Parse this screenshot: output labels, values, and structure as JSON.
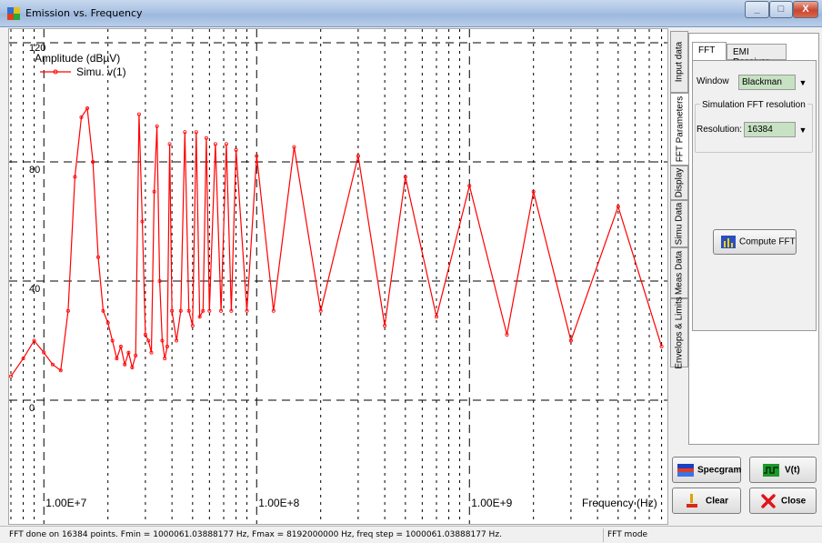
{
  "window": {
    "title": "Emission vs. Frequency",
    "min_glyph": "_",
    "max_glyph": "□",
    "close_glyph": "X"
  },
  "side_tabs": [
    "Input data",
    "FFT Parameters",
    "Display",
    "Simu Data",
    "Meas Data",
    "Envelops & Limits"
  ],
  "active_side_tab": "FFT Parameters",
  "panel": {
    "tabs": [
      "FFT",
      "EMI Receiver"
    ],
    "active_tab": "FFT",
    "window_label": "Window",
    "window_value": "Blackman",
    "group_title": "Simulation FFT resolution",
    "resolution_label": "Resolution:",
    "resolution_value": "16384",
    "compute_label": "Compute FFT"
  },
  "buttons": {
    "specgram": "Specgram",
    "vt": "V(t)",
    "clear": "Clear",
    "close": "Close"
  },
  "status": {
    "message": "FFT done on 16384 points. Fmin = 1000061.03888177 Hz, Fmax = 8192000000 Hz, freq step = 1000061.03888177 Hz.",
    "mode": "FFT mode"
  },
  "colors": {
    "series": "#ff0000",
    "combo_bg": "#c7e2c3"
  },
  "chart_data": {
    "type": "line",
    "ylabel": "Amplitude (dBµV)",
    "xlabel": "Frequency (Hz)",
    "x_scale": "log",
    "x_ticks": [
      "1.00E+7",
      "1.00E+8",
      "1.00E+9"
    ],
    "y_ticks": [
      "0",
      "40",
      "80",
      "120"
    ],
    "ylim": [
      -40,
      120
    ],
    "xlim": [
      7000000,
      8192000000
    ],
    "grid": true,
    "legend_position": "top-left",
    "series": [
      {
        "name": "Simu. v(1)",
        "x": [
          7000000,
          8000000,
          9000000,
          10000000,
          11000000,
          12000000,
          13000000,
          14000000,
          15000000,
          16000000,
          17000000,
          18000000,
          19000000,
          20000000,
          21000000,
          22000000,
          23000000,
          24000000,
          25000000,
          26000000,
          27000000,
          28000000,
          29000000,
          30000000,
          31000000,
          32000000,
          33000000,
          34000000,
          35000000,
          36000000,
          37000000,
          38000000,
          39000000,
          40000000,
          42000000,
          44000000,
          46000000,
          48000000,
          50000000,
          52000000,
          54000000,
          56000000,
          58000000,
          60000000,
          64000000,
          68000000,
          72000000,
          76000000,
          80000000,
          90000000,
          100000000,
          120000000,
          150000000,
          200000000,
          300000000,
          400000000,
          500000000,
          700000000,
          1000000000,
          1500000000,
          2000000000,
          3000000000,
          5000000000,
          8000000000
        ],
        "values": [
          8,
          14,
          20,
          16,
          12,
          10,
          30,
          75,
          95,
          98,
          80,
          48,
          30,
          26,
          20,
          14,
          18,
          12,
          16,
          11,
          15,
          96,
          60,
          22,
          20,
          16,
          70,
          92,
          40,
          20,
          14,
          18,
          86,
          30,
          20,
          30,
          90,
          30,
          25,
          90,
          28,
          30,
          88,
          30,
          86,
          30,
          86,
          30,
          84,
          30,
          82,
          30,
          85,
          30,
          82,
          25,
          75,
          28,
          72,
          22,
          70,
          20,
          65,
          18
        ]
      }
    ]
  }
}
